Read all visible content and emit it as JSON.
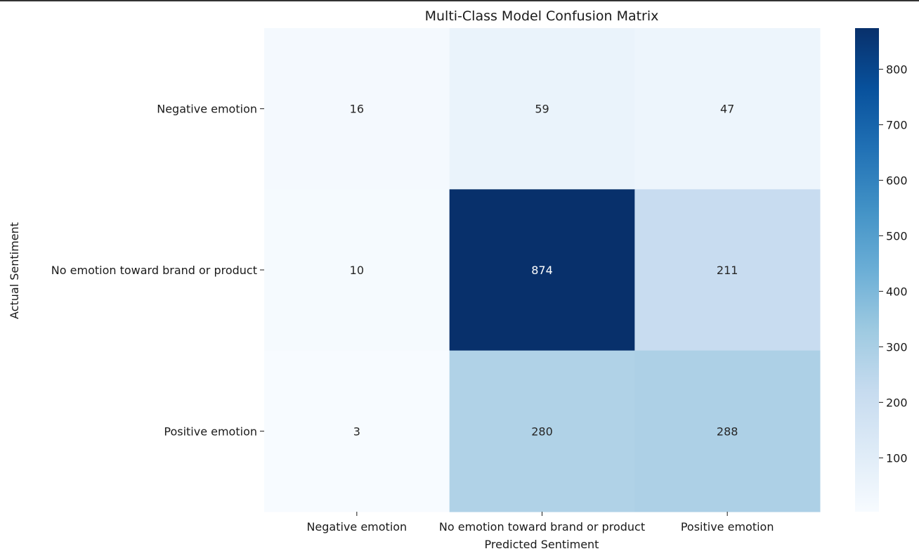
{
  "chart_data": {
    "type": "heatmap",
    "title": "Multi-Class Model Confusion Matrix",
    "xlabel": "Predicted Sentiment",
    "ylabel": "Actual Sentiment",
    "x_categories": [
      "Negative emotion",
      "No emotion toward brand or product",
      "Positive emotion"
    ],
    "y_categories": [
      "Negative emotion",
      "No emotion toward brand or product",
      "Positive emotion"
    ],
    "values": [
      [
        16,
        59,
        47
      ],
      [
        10,
        874,
        211
      ],
      [
        3,
        280,
        288
      ]
    ],
    "colormap": "Blues",
    "colorbar": {
      "range": [
        3,
        874
      ],
      "ticks": [
        100,
        200,
        300,
        400,
        500,
        600,
        700,
        800
      ]
    },
    "grid": false,
    "legend": "colorbar right"
  }
}
